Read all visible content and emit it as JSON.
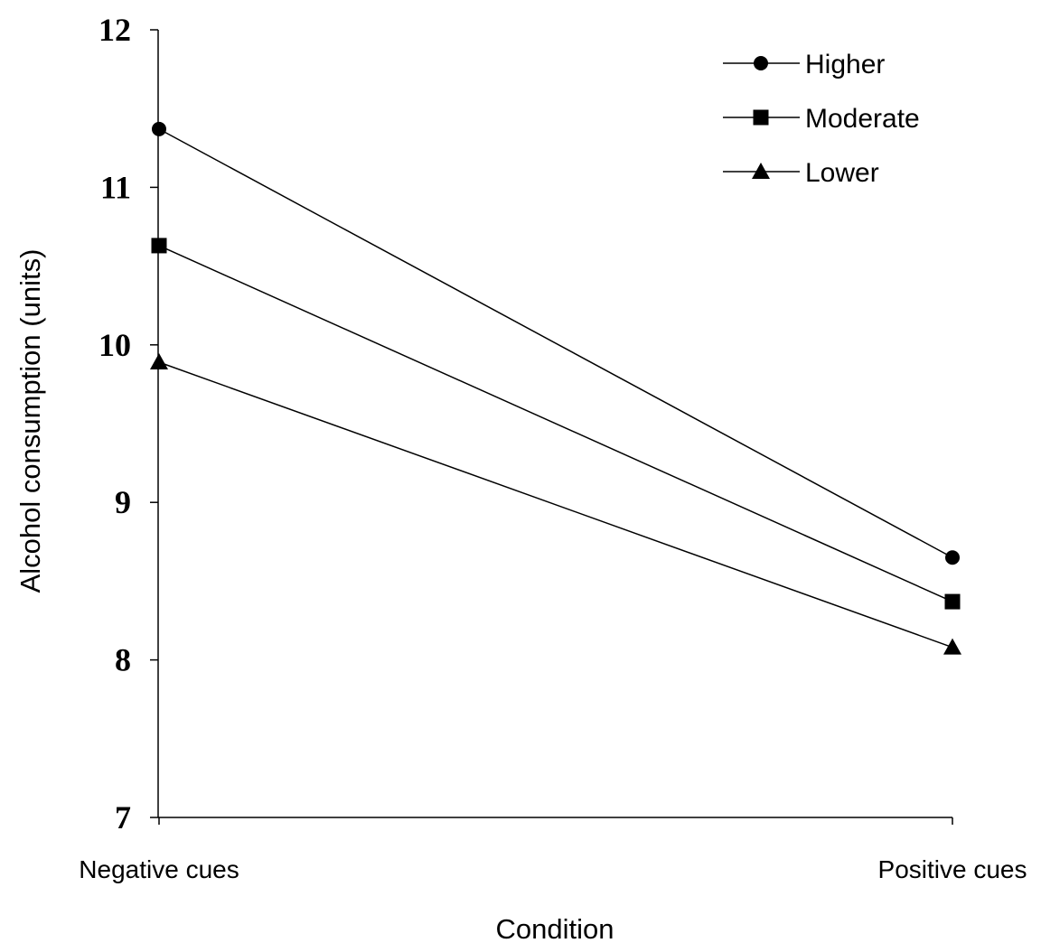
{
  "chart_data": {
    "type": "line",
    "title": "",
    "xlabel": "Condition",
    "ylabel": "Alcohol consumption (units)",
    "categories": [
      "Negative cues",
      "Positive cues"
    ],
    "ylim": [
      7,
      12
    ],
    "yticks": [
      7,
      8,
      9,
      10,
      11,
      12
    ],
    "grid": false,
    "legend_position": "top-right",
    "series": [
      {
        "name": "Higher",
        "marker": "circle",
        "values": [
          11.37,
          8.65
        ]
      },
      {
        "name": "Moderate",
        "marker": "square",
        "values": [
          10.63,
          8.37
        ]
      },
      {
        "name": "Lower",
        "marker": "triangle",
        "values": [
          9.89,
          8.08
        ]
      }
    ],
    "colors": {
      "line": "#000000",
      "marker": "#000000"
    }
  }
}
